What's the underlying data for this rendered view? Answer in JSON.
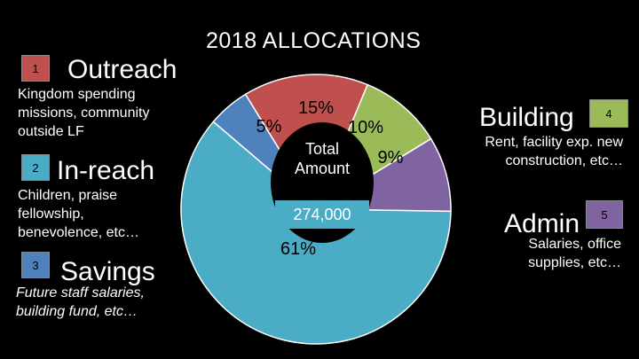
{
  "chart_data": {
    "type": "pie",
    "style": "donut",
    "title": "2018 ALLOCATIONS",
    "center_label": "Total Amount",
    "total": "274,000",
    "slices": [
      {
        "category": "Outreach",
        "value": 15,
        "label": "15%",
        "color": "#c0504d"
      },
      {
        "category": "Building",
        "value": 10,
        "label": "10%",
        "color": "#9bbb59"
      },
      {
        "category": "Admin",
        "value": 9,
        "label": "9%",
        "color": "#8064a2"
      },
      {
        "category": "In-reach",
        "value": 61,
        "label": "61%",
        "color": "#4bacc6"
      },
      {
        "category": "Savings",
        "value": 5,
        "label": "5%",
        "color": "#4f81bd"
      }
    ]
  },
  "categories": [
    {
      "number": "1",
      "title": "Outreach",
      "description": "Kingdom spending missions, community outside LF",
      "color": "#c0504d"
    },
    {
      "number": "2",
      "title": "In-reach",
      "description": "Children, praise fellowship, benevolence, etc…",
      "color": "#4bacc6"
    },
    {
      "number": "3",
      "title": "Savings",
      "description": "Future staff salaries, building fund, etc…",
      "color": "#4f81bd"
    },
    {
      "number": "4",
      "title": "Building",
      "description": "Rent, facility exp. new construction, etc…",
      "color": "#9bbb59"
    },
    {
      "number": "5",
      "title": "Admin",
      "description": "Salaries, office supplies, etc…",
      "color": "#8064a2"
    }
  ]
}
